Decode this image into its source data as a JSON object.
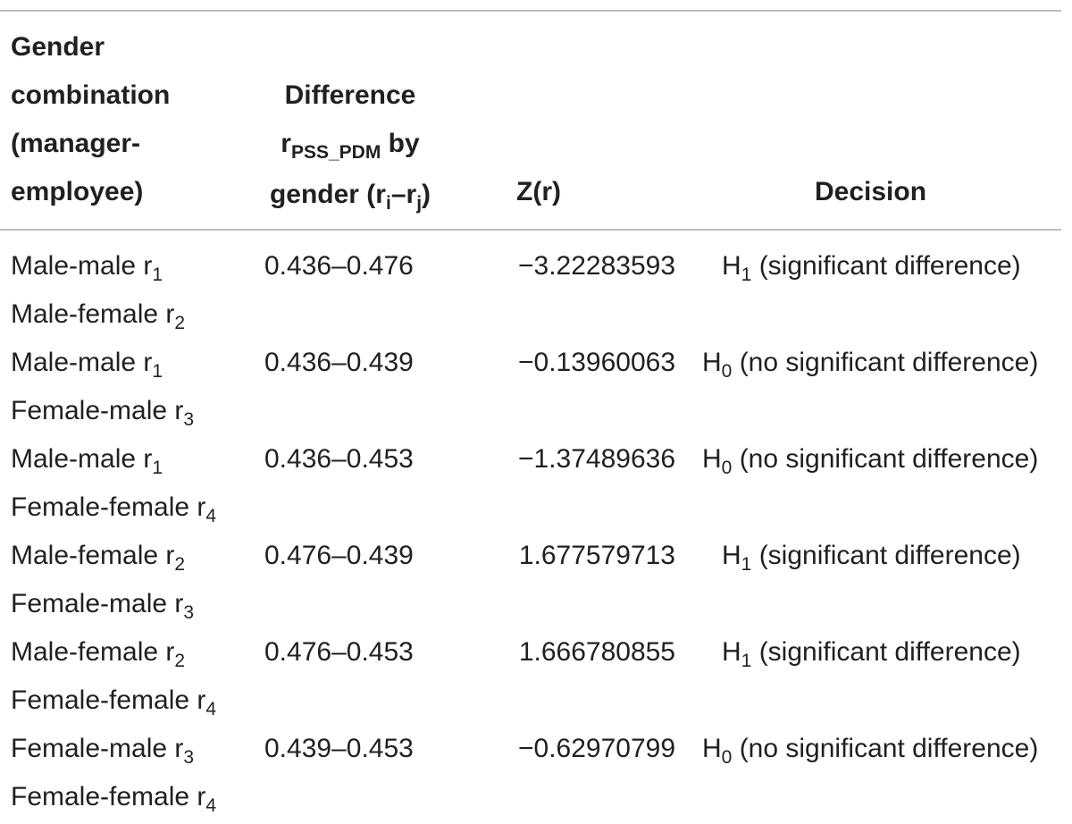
{
  "table": {
    "headers": {
      "gender_combination": [
        "Gender",
        "combination",
        "(manager-",
        "employee)"
      ],
      "difference": {
        "line1": "Difference",
        "line2_main": "r",
        "line2_sub": "PSS_PDM",
        "line2_rest": " by",
        "line3_pre": "gender (r",
        "line3_sub_i": "i",
        "line3_mid": "–r",
        "line3_sub_j": "j",
        "line3_post": ")"
      },
      "z": "Z(r)",
      "decision": "Decision"
    },
    "rows": [
      {
        "pair1_label": "Male-male r",
        "pair1_sub": "1",
        "pair2_label": "Male-female r",
        "pair2_sub": "2",
        "difference": "0.436–0.476",
        "z": "−3.22283593",
        "decision_h": "H",
        "decision_sub": "1",
        "decision_text": " (significant difference)",
        "significant": true
      },
      {
        "pair1_label": "Male-male r",
        "pair1_sub": "1",
        "pair2_label": "Female-male r",
        "pair2_sub": "3",
        "difference": "0.436–0.439",
        "z": "−0.13960063",
        "decision_h": "H",
        "decision_sub": "0",
        "decision_text": " (no significant difference)",
        "significant": false
      },
      {
        "pair1_label": "Male-male r",
        "pair1_sub": "1",
        "pair2_label": "Female-female r",
        "pair2_sub": "4",
        "difference": "0.436–0.453",
        "z": "−1.37489636",
        "decision_h": "H",
        "decision_sub": "0",
        "decision_text": " (no significant difference)",
        "significant": false
      },
      {
        "pair1_label": "Male-female r",
        "pair1_sub": "2",
        "pair2_label": "Female-male r",
        "pair2_sub": "3",
        "difference": "0.476–0.439",
        "z": "1.677579713",
        "decision_h": "H",
        "decision_sub": "1",
        "decision_text": " (significant difference)",
        "significant": true
      },
      {
        "pair1_label": "Male-female r",
        "pair1_sub": "2",
        "pair2_label": "Female-female r",
        "pair2_sub": "4",
        "difference": "0.476–0.453",
        "z": "1.666780855",
        "decision_h": "H",
        "decision_sub": "1",
        "decision_text": " (significant difference)",
        "significant": true
      },
      {
        "pair1_label": "Female-male r",
        "pair1_sub": "3",
        "pair2_label": "Female-female r",
        "pair2_sub": "4",
        "difference": "0.439–0.453",
        "z": "−0.62970799",
        "decision_h": "H",
        "decision_sub": "0",
        "decision_text": " (no significant difference)",
        "significant": false
      }
    ]
  }
}
